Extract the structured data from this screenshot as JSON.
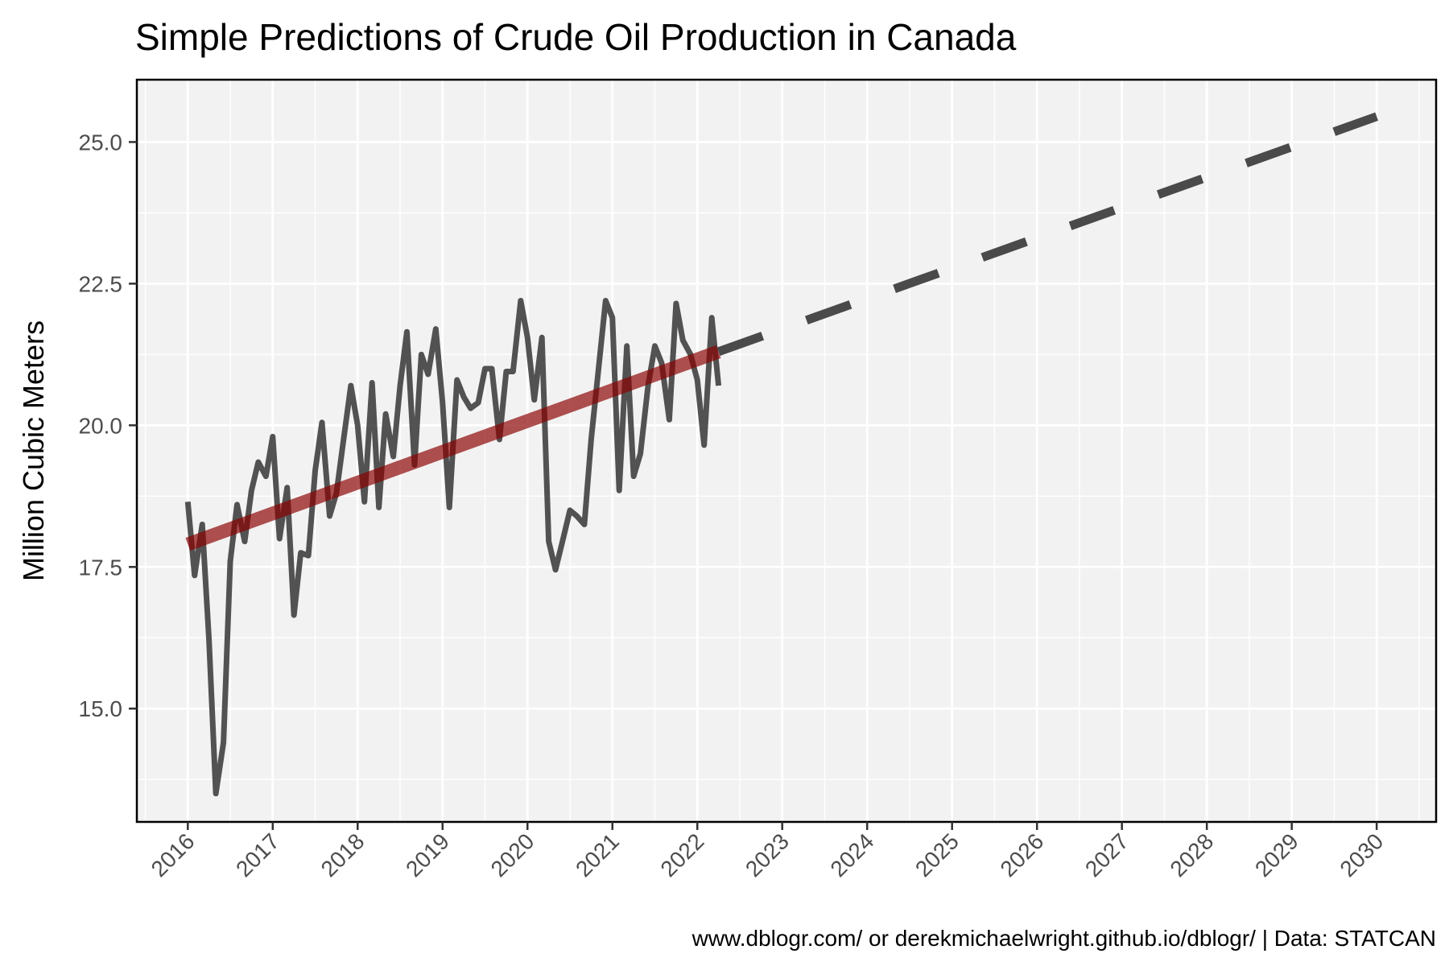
{
  "chart_data": {
    "type": "line",
    "title": "Simple Predictions of Crude Oil Production in Canada",
    "xlabel": "",
    "ylabel": "Million Cubic Meters",
    "caption": "www.dblogr.com/ or derekmichaelwright.github.io/dblogr/ | Data: STATCAN",
    "xlim": [
      2015.4,
      2030.7
    ],
    "ylim": [
      13.0,
      26.1
    ],
    "x_ticks": [
      "2016",
      "2017",
      "2018",
      "2019",
      "2020",
      "2021",
      "2022",
      "2023",
      "2024",
      "2025",
      "2026",
      "2027",
      "2028",
      "2029",
      "2030"
    ],
    "y_ticks": [
      "15.0",
      "17.5",
      "20.0",
      "22.5",
      "25.0"
    ],
    "grid": true,
    "background": "#f2f2f2",
    "grid_color": "#ffffff",
    "series": [
      {
        "style": "solid",
        "color": "#404040",
        "opacity": 0.9,
        "points": [
          [
            2016.0,
            18.65
          ],
          [
            2016.08,
            17.35
          ],
          [
            2016.17,
            18.25
          ],
          [
            2016.25,
            16.2
          ],
          [
            2016.33,
            13.5
          ],
          [
            2016.42,
            14.4
          ],
          [
            2016.5,
            17.6
          ],
          [
            2016.58,
            18.6
          ],
          [
            2016.67,
            17.95
          ],
          [
            2016.75,
            18.85
          ],
          [
            2016.83,
            19.35
          ],
          [
            2016.92,
            19.1
          ],
          [
            2017.0,
            19.8
          ],
          [
            2017.08,
            18.0
          ],
          [
            2017.17,
            18.9
          ],
          [
            2017.25,
            16.65
          ],
          [
            2017.33,
            17.75
          ],
          [
            2017.42,
            17.7
          ],
          [
            2017.5,
            19.2
          ],
          [
            2017.58,
            20.05
          ],
          [
            2017.67,
            18.4
          ],
          [
            2017.75,
            18.8
          ],
          [
            2017.83,
            19.7
          ],
          [
            2017.92,
            20.7
          ],
          [
            2018.0,
            20.0
          ],
          [
            2018.08,
            18.65
          ],
          [
            2018.17,
            20.75
          ],
          [
            2018.25,
            18.55
          ],
          [
            2018.33,
            20.2
          ],
          [
            2018.42,
            19.45
          ],
          [
            2018.5,
            20.7
          ],
          [
            2018.58,
            21.65
          ],
          [
            2018.67,
            19.3
          ],
          [
            2018.75,
            21.25
          ],
          [
            2018.83,
            20.9
          ],
          [
            2018.92,
            21.7
          ],
          [
            2019.0,
            20.4
          ],
          [
            2019.08,
            18.55
          ],
          [
            2019.17,
            20.8
          ],
          [
            2019.25,
            20.5
          ],
          [
            2019.33,
            20.3
          ],
          [
            2019.42,
            20.4
          ],
          [
            2019.5,
            21.0
          ],
          [
            2019.58,
            21.0
          ],
          [
            2019.67,
            19.75
          ],
          [
            2019.75,
            20.95
          ],
          [
            2019.83,
            20.95
          ],
          [
            2019.92,
            22.2
          ],
          [
            2020.0,
            21.55
          ],
          [
            2020.08,
            20.45
          ],
          [
            2020.17,
            21.55
          ],
          [
            2020.25,
            17.95
          ],
          [
            2020.33,
            17.45
          ],
          [
            2020.42,
            18.0
          ],
          [
            2020.5,
            18.5
          ],
          [
            2020.58,
            18.4
          ],
          [
            2020.67,
            18.25
          ],
          [
            2020.75,
            19.75
          ],
          [
            2020.83,
            20.9
          ],
          [
            2020.92,
            22.2
          ],
          [
            2021.0,
            21.9
          ],
          [
            2021.08,
            18.85
          ],
          [
            2021.17,
            21.4
          ],
          [
            2021.25,
            19.1
          ],
          [
            2021.33,
            19.5
          ],
          [
            2021.42,
            20.7
          ],
          [
            2021.5,
            21.4
          ],
          [
            2021.58,
            21.1
          ],
          [
            2021.67,
            20.1
          ],
          [
            2021.75,
            22.15
          ],
          [
            2021.83,
            21.5
          ],
          [
            2021.92,
            21.25
          ],
          [
            2022.0,
            20.8
          ],
          [
            2022.08,
            19.65
          ],
          [
            2022.17,
            21.9
          ],
          [
            2022.25,
            20.7
          ]
        ]
      },
      {
        "style": "trend",
        "color": "#8b0000",
        "opacity": 0.68,
        "points": [
          [
            2016.0,
            17.9
          ],
          [
            2022.25,
            21.3
          ]
        ]
      },
      {
        "style": "dashed",
        "color": "#404040",
        "opacity": 0.95,
        "points": [
          [
            2022.25,
            21.3
          ],
          [
            2030.0,
            25.45
          ]
        ]
      }
    ]
  }
}
